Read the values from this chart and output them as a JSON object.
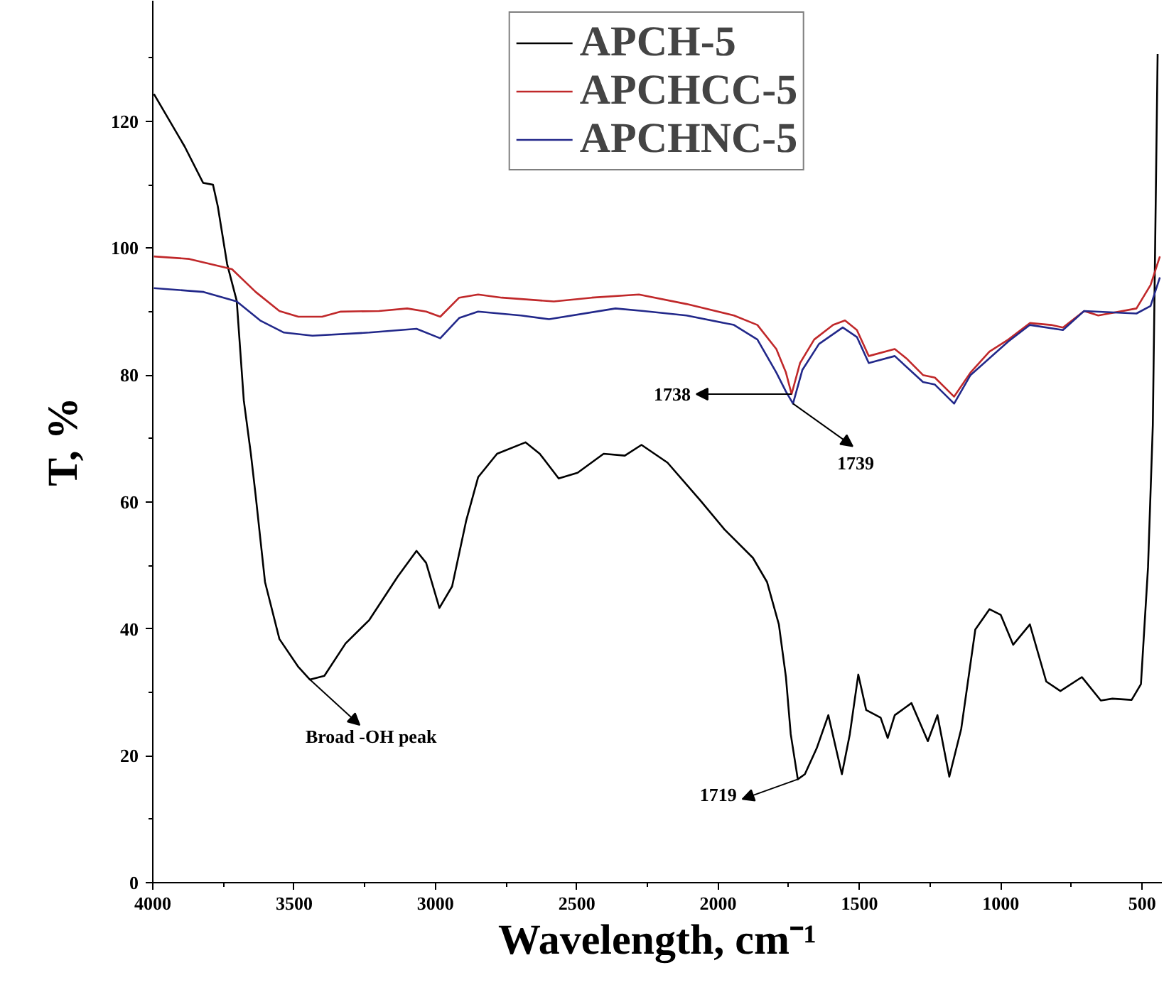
{
  "chart_data": {
    "type": "line",
    "xlabel": "Wavelength, cm⁻¹",
    "ylabel": "T, %",
    "xlim": [
      4000,
      430
    ],
    "ylim": [
      0,
      139
    ],
    "xticks": [
      4000,
      {
        "value": 3750,
        "label": null
      },
      3500,
      {
        "value": 3250,
        "label": null
      },
      3000,
      {
        "value": 2750,
        "label": null
      },
      2500,
      {
        "value": 2250,
        "label": null
      },
      2000,
      {
        "value": 1750,
        "label": null
      },
      1500,
      {
        "value": 1250,
        "label": null
      },
      1000,
      {
        "value": 750,
        "label": null
      },
      500
    ],
    "yticks": [
      0,
      {
        "value": 10,
        "label": null
      },
      20,
      {
        "value": 30,
        "label": null
      },
      40,
      {
        "value": 50,
        "label": null
      },
      60,
      {
        "value": 70,
        "label": null
      },
      80,
      {
        "value": 90,
        "label": null
      },
      100,
      {
        "value": 110,
        "label": null
      },
      120,
      {
        "value": 130,
        "label": null
      }
    ],
    "grid": false,
    "legend": "top",
    "marker": "none",
    "line_style": "solid",
    "series": [
      {
        "name": "APCH-5",
        "color": "#000000",
        "x": [
          3996,
          3887,
          3822,
          3787,
          3770,
          3737,
          3703,
          3678,
          3653,
          3636,
          3603,
          3552,
          3485,
          3444,
          3393,
          3318,
          3234,
          3134,
          3067,
          3033,
          2986,
          2941,
          2891,
          2849,
          2782,
          2681,
          2631,
          2564,
          2497,
          2405,
          2330,
          2271,
          2179,
          2062,
          1978,
          1877,
          1827,
          1785,
          1760,
          1743,
          1718,
          1693,
          1651,
          1610,
          1562,
          1534,
          1504,
          1476,
          1425,
          1400,
          1375,
          1316,
          1258,
          1224,
          1182,
          1140,
          1090,
          1040,
          1000,
          956,
          897,
          839,
          789,
          713,
          646,
          605,
          537,
          504,
          479,
          462,
          445
        ],
        "values": [
          124.3,
          116,
          110.3,
          110,
          106.6,
          97.5,
          91.7,
          76,
          67.6,
          61,
          47.4,
          38.4,
          34,
          32,
          32.6,
          37.7,
          41.4,
          48.2,
          52.3,
          50.4,
          43.3,
          46.7,
          57.1,
          63.9,
          67.6,
          69.4,
          67.6,
          63.7,
          64.6,
          67.6,
          67.3,
          69,
          66.2,
          60.2,
          55.7,
          51.2,
          47.4,
          40.7,
          32.4,
          23.4,
          16.3,
          17.1,
          21.2,
          26.4,
          17.1,
          23.4,
          32.8,
          27.2,
          26,
          22.8,
          26.4,
          28.3,
          22.3,
          26.4,
          16.7,
          24.2,
          39.9,
          43.1,
          42.2,
          37.5,
          40.7,
          31.7,
          30.2,
          32.4,
          28.7,
          29,
          28.8,
          31.3,
          49.7,
          72.1,
          130.6
        ]
      },
      {
        "name": "APCHCC-5",
        "color": "#c0282a",
        "x": [
          3996,
          3871,
          3720,
          3636,
          3552,
          3485,
          3401,
          3335,
          3200,
          3100,
          3033,
          2983,
          2916,
          2849,
          2765,
          2581,
          2447,
          2280,
          2112,
          1944,
          1861,
          1794,
          1760,
          1740,
          1710,
          1660,
          1593,
          1551,
          1509,
          1467,
          1375,
          1333,
          1275,
          1233,
          1165,
          1107,
          1040,
          973,
          897,
          822,
          780,
          705,
          655,
          520,
          470,
          437
        ],
        "values": [
          98.7,
          98.3,
          96.7,
          93.1,
          90.1,
          89.2,
          89.2,
          90,
          90.1,
          90.5,
          90,
          89.2,
          92.2,
          92.7,
          92.2,
          91.6,
          92.2,
          92.7,
          91.2,
          89.4,
          87.9,
          84.1,
          80.4,
          77,
          81.9,
          85.6,
          87.9,
          88.6,
          87.1,
          83,
          84.1,
          82.6,
          80,
          79.6,
          76.6,
          80.4,
          83.7,
          85.6,
          88.2,
          87.9,
          87.5,
          90.1,
          89.4,
          90.5,
          94.2,
          98.7
        ]
      },
      {
        "name": "APCHNC-5",
        "color": "#22288a",
        "x": [
          3996,
          3820,
          3703,
          3620,
          3536,
          3435,
          3234,
          3067,
          2983,
          2916,
          2849,
          2698,
          2598,
          2363,
          2263,
          2112,
          1944,
          1861,
          1794,
          1760,
          1735,
          1702,
          1643,
          1559,
          1509,
          1467,
          1375,
          1275,
          1233,
          1165,
          1107,
          973,
          897,
          780,
          705,
          520,
          470,
          437
        ],
        "values": [
          93.7,
          93.1,
          91.6,
          88.6,
          86.7,
          86.2,
          86.7,
          87.3,
          85.8,
          89,
          90,
          89.4,
          88.8,
          90.5,
          90.1,
          89.4,
          87.9,
          85.6,
          80.4,
          77.4,
          75.5,
          80.8,
          84.9,
          87.5,
          86,
          81.9,
          83,
          78.9,
          78.5,
          75.5,
          80,
          85.3,
          87.9,
          87.1,
          90.1,
          89.7,
          90.9,
          95.4
        ]
      }
    ],
    "annotations": [
      {
        "text": "1738",
        "x": 1740,
        "y": 77
      },
      {
        "text": "1739",
        "x": 1735,
        "y": 75.5
      },
      {
        "text": "Broad -OH peak",
        "x": 3444,
        "y": 32
      },
      {
        "text": "1719",
        "x": 1718,
        "y": 16.3
      }
    ]
  }
}
